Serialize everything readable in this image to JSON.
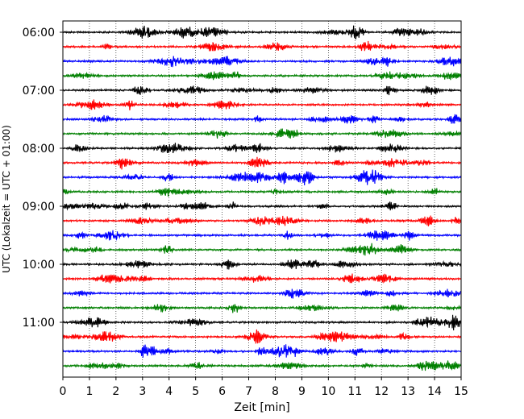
{
  "chart_data": {
    "type": "line",
    "title": "",
    "xlabel": "Zeit  [min]",
    "ylabel": "UTC (Lokalzeit = UTC + 01:00)",
    "xlim": [
      0,
      15
    ],
    "x_ticks": [
      "0",
      "1",
      "2",
      "3",
      "4",
      "5",
      "6",
      "7",
      "8",
      "9",
      "10",
      "11",
      "12",
      "13",
      "14",
      "15"
    ],
    "y_ticks": [
      "06:00",
      "07:00",
      "08:00",
      "09:00",
      "10:00",
      "11:00"
    ],
    "grid": "vertical-dotted",
    "legend": "none",
    "traces_per_hour": 4,
    "trace_interval_minutes": 15,
    "trace_count": 24,
    "colors": [
      "#000000",
      "#ff0000",
      "#0000ff",
      "#008000"
    ]
  }
}
